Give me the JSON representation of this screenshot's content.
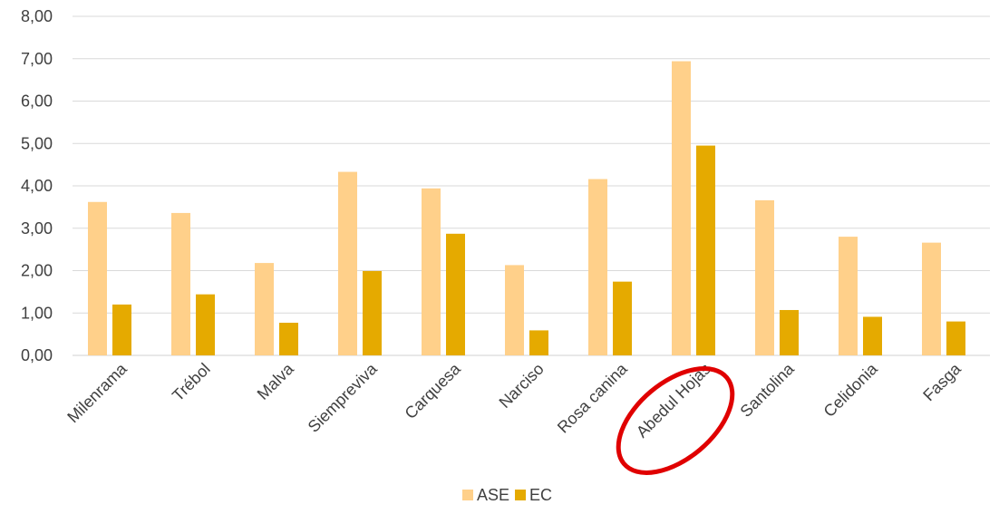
{
  "chart_data": {
    "type": "bar",
    "categories": [
      "Milenrama",
      "Trébol",
      "Malva",
      "Siempreviva",
      "Carquesa",
      "Narciso",
      "Rosa canina",
      "Abedul Hojas",
      "Santolina",
      "Celidonia",
      "Fasga"
    ],
    "series": [
      {
        "name": "ASE",
        "values": [
          3.62,
          3.36,
          2.18,
          4.33,
          3.94,
          2.13,
          4.16,
          6.94,
          3.66,
          2.8,
          2.66
        ],
        "color": "#ffd08a"
      },
      {
        "name": "EC",
        "values": [
          1.2,
          1.44,
          0.77,
          1.99,
          2.87,
          0.59,
          1.74,
          4.95,
          1.07,
          0.91,
          0.8
        ],
        "color": "#e5aa00"
      }
    ],
    "ylim": [
      0,
      8
    ],
    "yticks": [
      "0,00",
      "1,00",
      "2,00",
      "3,00",
      "4,00",
      "5,00",
      "6,00",
      "7,00",
      "8,00"
    ],
    "grid": true,
    "legend": "bottom",
    "annotation": {
      "type": "ellipse",
      "target": "Abedul Hojas",
      "color": "#e00000"
    },
    "gridColor": "#d9d9d9",
    "textColor": "#404040"
  }
}
